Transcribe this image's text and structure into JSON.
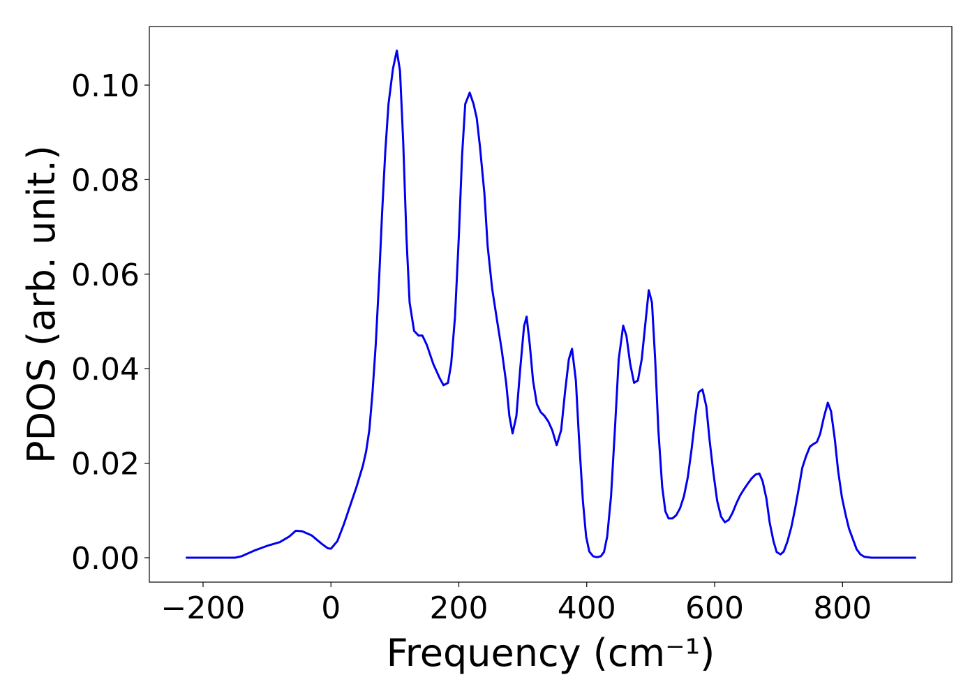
{
  "chart_data": {
    "type": "line",
    "xlabel": "Frequency (cm⁻¹)",
    "ylabel": "PDOS (arb. unit.)",
    "xlim": [
      -284,
      971
    ],
    "ylim": [
      -0.00517,
      0.1124
    ],
    "xticks": [
      {
        "value": -200,
        "label": "−200"
      },
      0,
      200,
      400,
      600,
      800
    ],
    "yticks": [
      {
        "value": 0,
        "label": "0.00"
      },
      0.02,
      0.04,
      0.06,
      0.08,
      {
        "value": 0.1,
        "label": "0.10"
      }
    ],
    "grid": false,
    "x": [
      -227,
      -150,
      -140,
      -120,
      -100,
      -80,
      -65,
      -55,
      -45,
      -30,
      -15,
      -5,
      0,
      10,
      20,
      30,
      40,
      50,
      55,
      60,
      65,
      70,
      75,
      80,
      85,
      90,
      97,
      103,
      108,
      113,
      118,
      123,
      130,
      137,
      143,
      150,
      160,
      170,
      176,
      183,
      188,
      194,
      200,
      205,
      210,
      217,
      223,
      228,
      233,
      240,
      245,
      252,
      260,
      267,
      274,
      279,
      284,
      290,
      296,
      302,
      306,
      311,
      316,
      322,
      328,
      334,
      340,
      346,
      353,
      360,
      366,
      372,
      377,
      383,
      388,
      394,
      399,
      404,
      410,
      416,
      422,
      427,
      432,
      438,
      444,
      450,
      457,
      462,
      468,
      474,
      480,
      486,
      492,
      497,
      502,
      507,
      512,
      518,
      523,
      528,
      534,
      540,
      546,
      552,
      558,
      564,
      570,
      575,
      581,
      587,
      592,
      598,
      604,
      610,
      616,
      622,
      628,
      634,
      640,
      646,
      652,
      658,
      664,
      670,
      675,
      681,
      686,
      692,
      697,
      703,
      708,
      714,
      720,
      726,
      732,
      737,
      743,
      749,
      754,
      760,
      765,
      771,
      777,
      782,
      788,
      793,
      799,
      805,
      810,
      816,
      822,
      828,
      834,
      845,
      915
    ],
    "series": [
      {
        "name": "PDOS",
        "color": "#0000ee",
        "values": [
          0,
          0,
          0.0003,
          0.0015,
          0.0025,
          0.0033,
          0.0045,
          0.0057,
          0.0056,
          0.0047,
          0.003,
          0.002,
          0.0019,
          0.0035,
          0.007,
          0.011,
          0.015,
          0.0195,
          0.0225,
          0.027,
          0.035,
          0.045,
          0.058,
          0.073,
          0.086,
          0.096,
          0.1035,
          0.1073,
          0.103,
          0.088,
          0.068,
          0.054,
          0.048,
          0.047,
          0.047,
          0.045,
          0.041,
          0.038,
          0.0365,
          0.037,
          0.041,
          0.051,
          0.068,
          0.085,
          0.096,
          0.0984,
          0.096,
          0.093,
          0.087,
          0.077,
          0.066,
          0.057,
          0.05,
          0.044,
          0.037,
          0.03,
          0.0263,
          0.03,
          0.04,
          0.049,
          0.051,
          0.045,
          0.0375,
          0.0325,
          0.0308,
          0.03,
          0.0288,
          0.027,
          0.0238,
          0.027,
          0.035,
          0.042,
          0.0442,
          0.0375,
          0.025,
          0.012,
          0.0045,
          0.0013,
          0.0003,
          0.0001,
          0.0003,
          0.0012,
          0.0045,
          0.013,
          0.027,
          0.042,
          0.0491,
          0.047,
          0.041,
          0.037,
          0.0375,
          0.042,
          0.05,
          0.0566,
          0.054,
          0.042,
          0.027,
          0.015,
          0.0098,
          0.0083,
          0.0083,
          0.009,
          0.0105,
          0.013,
          0.017,
          0.023,
          0.03,
          0.035,
          0.0356,
          0.032,
          0.025,
          0.018,
          0.012,
          0.0087,
          0.0075,
          0.008,
          0.0095,
          0.0115,
          0.0132,
          0.0145,
          0.0157,
          0.0168,
          0.0176,
          0.0178,
          0.0162,
          0.0125,
          0.0075,
          0.0035,
          0.0012,
          0.0007,
          0.0013,
          0.0035,
          0.0065,
          0.0105,
          0.015,
          0.019,
          0.0215,
          0.0235,
          0.024,
          0.0245,
          0.0262,
          0.0298,
          0.0328,
          0.031,
          0.025,
          0.0185,
          0.0128,
          0.009,
          0.0062,
          0.004,
          0.0018,
          0.0007,
          0.0002,
          0,
          0
        ]
      }
    ]
  }
}
